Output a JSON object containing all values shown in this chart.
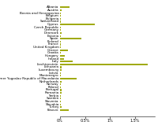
{
  "title": "",
  "countries": [
    "Albania",
    "Austria",
    "Bosnia and Herzegovina",
    "Belgium",
    "Bulgaria",
    "Switzerland",
    "Cyprus",
    "Czech Republic",
    "Germany",
    "Denmark",
    "Estonia",
    "Spain",
    "Finland",
    "France",
    "United Kingdom",
    "Greece",
    "Croatia",
    "Hungary",
    "Ireland",
    "Italy",
    "Liechtenstein",
    "Lithuania",
    "Luxembourg",
    "Latvia",
    "Montenegro",
    "Former Yugoslav Republic of Macedonia",
    "Netherlands",
    "Norway",
    "Poland",
    "Portugal",
    "Romania",
    "Serbia",
    "Sweden",
    "Slovenia",
    "Slovakia",
    "Turkey",
    "Kosovo"
  ],
  "values": [
    190,
    35,
    10,
    10,
    15,
    15,
    700,
    15,
    20,
    30,
    10,
    420,
    20,
    15,
    15,
    165,
    20,
    90,
    80,
    255,
    1750,
    30,
    25,
    8,
    15,
    340,
    30,
    20,
    20,
    30,
    30,
    18,
    18,
    20,
    18,
    30,
    175
  ],
  "bar_color": "#a0aa10",
  "xlim": [
    0,
    1900
  ],
  "xtick_values": [
    0,
    500,
    1000,
    1500
  ],
  "xtick_labels": [
    "0%",
    "0.5%",
    "1%",
    "1.5%"
  ],
  "tick_fontsize": 3.5,
  "label_fontsize": 3.0,
  "bar_height": 0.6,
  "background_color": "#ffffff"
}
